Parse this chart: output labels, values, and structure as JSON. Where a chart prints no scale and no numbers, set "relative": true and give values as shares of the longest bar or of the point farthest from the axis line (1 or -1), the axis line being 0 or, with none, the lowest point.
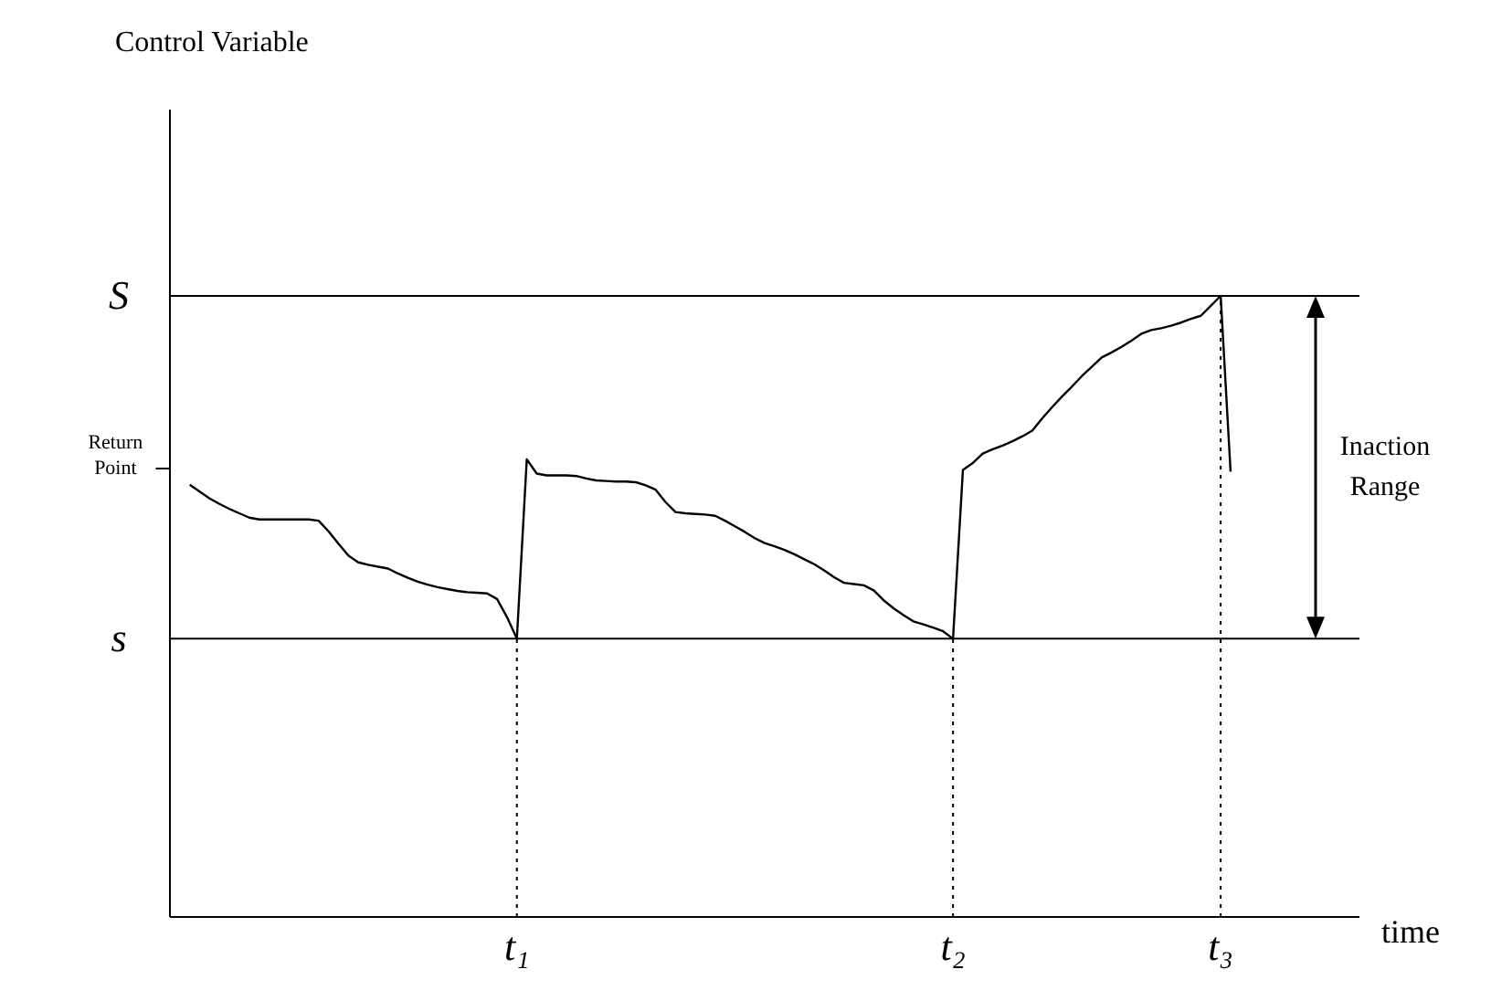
{
  "chart_data": {
    "type": "line",
    "relative": true,
    "xlabel": "time",
    "categories": [
      null,
      null,
      null,
      null,
      null,
      null,
      null,
      null,
      null,
      null,
      null,
      null,
      null,
      null,
      null,
      null,
      null,
      null,
      null,
      null,
      null,
      null,
      null,
      null,
      null,
      null,
      null,
      null,
      null,
      null,
      null,
      null,
      null,
      null,
      null,
      "t₁",
      null,
      null,
      null,
      null,
      null,
      null,
      null,
      null,
      null,
      null,
      null,
      null,
      null,
      null,
      null,
      null,
      null,
      null,
      null,
      null,
      null,
      null,
      null,
      null,
      null,
      null,
      null,
      null,
      null,
      null,
      null,
      null,
      null,
      null,
      null,
      null,
      null,
      null,
      null,
      null,
      null,
      null,
      null,
      "t₂",
      null,
      null,
      null,
      null,
      null,
      null,
      null,
      null,
      null,
      null,
      null,
      null,
      null,
      null,
      null,
      null,
      null,
      null,
      null,
      null,
      null,
      null,
      null,
      null,
      null,
      null,
      "t₃",
      null,
      null,
      null,
      null,
      null,
      null,
      null,
      null,
      null,
      null,
      null,
      null,
      null,
      null
    ],
    "series": [
      {
        "color": "#000000",
        "values": [
          null,
          null,
          0.696,
          0.685,
          0.674,
          0.665,
          0.657,
          0.65,
          0.643,
          0.64,
          0.64,
          0.64,
          0.64,
          0.64,
          0.64,
          0.638,
          0.621,
          0.601,
          0.582,
          0.571,
          0.567,
          0.564,
          0.561,
          0.553,
          0.546,
          0.54,
          0.535,
          0.531,
          0.528,
          0.525,
          0.523,
          0.522,
          0.521,
          0.512,
          0.483,
          0.448,
          0.737,
          0.714,
          0.711,
          0.711,
          0.711,
          0.71,
          0.706,
          0.703,
          0.702,
          0.701,
          0.701,
          0.7,
          0.695,
          0.688,
          0.668,
          0.652,
          0.65,
          0.649,
          0.648,
          0.646,
          0.638,
          0.629,
          0.62,
          0.61,
          0.602,
          0.597,
          0.591,
          0.584,
          0.576,
          0.568,
          0.558,
          0.547,
          0.538,
          0.536,
          0.534,
          0.526,
          0.51,
          0.497,
          0.486,
          0.476,
          0.471,
          0.466,
          0.46,
          0.448,
          0.72,
          0.731,
          0.746,
          0.753,
          0.759,
          0.766,
          0.774,
          0.783,
          0.803,
          0.821,
          0.838,
          0.854,
          0.871,
          0.886,
          0.901,
          0.909,
          0.918,
          0.928,
          0.939,
          0.945,
          0.948,
          0.952,
          0.957,
          0.963,
          0.968,
          0.984,
          1,
          0.717,
          null,
          null,
          null,
          null,
          null,
          null,
          null,
          null,
          null,
          null,
          null,
          null,
          null
        ]
      }
    ],
    "ref_lines": [
      {
        "axis": "y",
        "value": 1,
        "label": "S",
        "line_style": "solid"
      },
      {
        "axis": "y",
        "value": 0.722,
        "label": "Return Point"
      },
      {
        "axis": "y",
        "value": 0.448,
        "label": "s",
        "line_style": "solid"
      },
      {
        "axis": "x",
        "value": "t₁",
        "line_style": "dotted"
      },
      {
        "axis": "x",
        "value": "t₂",
        "line_style": "dotted"
      },
      {
        "axis": "x",
        "value": "t₃",
        "line_style": "dotted"
      }
    ],
    "annotations": [
      "Control Variable",
      "Inaction Range"
    ]
  }
}
